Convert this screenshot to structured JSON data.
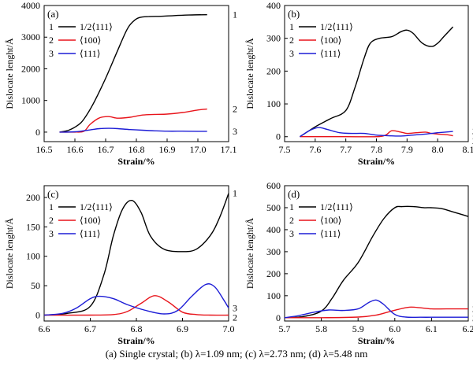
{
  "colors": {
    "1": "#000000",
    "2": "#e8141b",
    "3": "#1d1dd6"
  },
  "caption": "(a) Single crystal; (b) λ=1.09 nm; (c) λ=2.73 nm; (d) λ=5.48 nm",
  "chart_data": [
    {
      "type": "line",
      "panel_label": "(a)",
      "xlabel": "Strain/%",
      "ylabel": "Dislocate lenght/Å",
      "xlim": [
        16.5,
        17.1
      ],
      "ylim": [
        -300,
        4000
      ],
      "xticks": [
        "16.5",
        "16.6",
        "16.7",
        "16.8",
        "16.9",
        "17.0",
        "17.1"
      ],
      "yticks": [
        "0",
        "1000",
        "2000",
        "3000",
        "4000"
      ],
      "legend": [
        "1/2⟨111⟩",
        "⟨100⟩",
        "⟨111⟩"
      ],
      "legend_numbers": [
        "1",
        "2",
        "3"
      ],
      "series": [
        {
          "name": "1/2⟨111⟩",
          "end_label": "1",
          "x": [
            16.55,
            16.58,
            16.61,
            16.63,
            16.66,
            16.7,
            16.74,
            16.77,
            16.79,
            16.81,
            16.84,
            16.88,
            16.92,
            16.97,
            17.03
          ],
          "y": [
            0,
            60,
            220,
            420,
            900,
            1700,
            2600,
            3250,
            3500,
            3620,
            3650,
            3660,
            3680,
            3700,
            3710
          ]
        },
        {
          "name": "⟨100⟩",
          "end_label": "2",
          "x": [
            16.55,
            16.6,
            16.63,
            16.65,
            16.68,
            16.71,
            16.74,
            16.78,
            16.82,
            16.86,
            16.9,
            16.95,
            17.0,
            17.03
          ],
          "y": [
            0,
            0,
            30,
            250,
            450,
            490,
            440,
            470,
            540,
            560,
            570,
            620,
            700,
            730
          ]
        },
        {
          "name": "⟨111⟩",
          "end_label": "3",
          "x": [
            16.55,
            16.6,
            16.65,
            16.68,
            16.71,
            16.74,
            16.78,
            16.82,
            16.86,
            16.9,
            16.95,
            17.0,
            17.03
          ],
          "y": [
            0,
            10,
            70,
            110,
            120,
            110,
            80,
            60,
            40,
            30,
            30,
            25,
            25
          ]
        }
      ]
    },
    {
      "type": "line",
      "panel_label": "(b)",
      "xlabel": "Strain/%",
      "ylabel": "Dislocate lenght/Å",
      "xlim": [
        7.5,
        8.1
      ],
      "ylim": [
        -15,
        400
      ],
      "xticks": [
        "7.5",
        "7.6",
        "7.7",
        "7.8",
        "7.9",
        "8.0",
        "8.1"
      ],
      "yticks": [
        "0",
        "100",
        "200",
        "300",
        "400"
      ],
      "legend": [
        "1/2⟨111⟩",
        "⟨100⟩",
        "⟨111⟩"
      ],
      "legend_numbers": [
        "1",
        "2",
        "3"
      ],
      "series": [
        {
          "name": "1/2⟨111⟩",
          "end_label": "1",
          "x": [
            7.55,
            7.6,
            7.65,
            7.7,
            7.73,
            7.76,
            7.78,
            7.81,
            7.85,
            7.88,
            7.9,
            7.92,
            7.95,
            7.98,
            8.0,
            8.02,
            8.05
          ],
          "y": [
            0,
            30,
            55,
            80,
            150,
            240,
            285,
            300,
            305,
            320,
            325,
            315,
            285,
            275,
            285,
            305,
            335
          ]
        },
        {
          "name": "⟨100⟩",
          "end_label": "2",
          "x": [
            7.55,
            7.6,
            7.7,
            7.8,
            7.83,
            7.85,
            7.88,
            7.9,
            7.93,
            7.96,
            7.98,
            8.0,
            8.03,
            8.05
          ],
          "y": [
            0,
            0,
            0,
            0,
            5,
            18,
            14,
            10,
            12,
            14,
            10,
            8,
            6,
            3
          ]
        },
        {
          "name": "⟨111⟩",
          "end_label": "3",
          "x": [
            7.55,
            7.58,
            7.61,
            7.64,
            7.68,
            7.72,
            7.76,
            7.8,
            7.84,
            7.88,
            7.92,
            7.96,
            8.0,
            8.05
          ],
          "y": [
            0,
            18,
            28,
            22,
            12,
            10,
            10,
            5,
            3,
            2,
            5,
            8,
            12,
            16
          ]
        }
      ]
    },
    {
      "type": "line",
      "panel_label": "(c)",
      "xlabel": "Strain/%",
      "ylabel": "Dislocate lenght/Å",
      "xlim": [
        6.6,
        7.0
      ],
      "ylim": [
        -10,
        220
      ],
      "xticks": [
        "6.6",
        "6.7",
        "6.8",
        "6.9",
        "7.0"
      ],
      "yticks": [
        "0",
        "50",
        "100",
        "150",
        "200"
      ],
      "legend": [
        "1/2⟨111⟩",
        "⟨100⟩",
        "⟨111⟩"
      ],
      "legend_numbers": [
        "1",
        "2",
        "3"
      ],
      "series": [
        {
          "name": "1/2⟨111⟩",
          "end_label": "1",
          "x": [
            6.6,
            6.65,
            6.7,
            6.73,
            6.75,
            6.77,
            6.79,
            6.81,
            6.83,
            6.86,
            6.9,
            6.93,
            6.96,
            6.98,
            7.0
          ],
          "y": [
            0,
            3,
            15,
            70,
            135,
            180,
            195,
            175,
            135,
            112,
            108,
            112,
            135,
            165,
            207
          ]
        },
        {
          "name": "⟨100⟩",
          "end_label": "2",
          "x": [
            6.6,
            6.7,
            6.75,
            6.78,
            6.81,
            6.84,
            6.87,
            6.9,
            6.93,
            6.96,
            7.0
          ],
          "y": [
            0,
            0,
            1,
            6,
            20,
            33,
            22,
            5,
            1,
            0,
            0
          ]
        },
        {
          "name": "⟨111⟩",
          "end_label": "3",
          "x": [
            6.6,
            6.64,
            6.67,
            6.7,
            6.72,
            6.75,
            6.78,
            6.82,
            6.86,
            6.89,
            6.92,
            6.95,
            6.97,
            6.99,
            7.0
          ],
          "y": [
            0,
            3,
            12,
            28,
            32,
            28,
            18,
            8,
            2,
            8,
            32,
            52,
            48,
            25,
            12
          ]
        }
      ]
    },
    {
      "type": "line",
      "panel_label": "(d)",
      "xlabel": "Strain/%",
      "ylabel": "Dislocate lenght/Å",
      "xlim": [
        5.7,
        6.2
      ],
      "ylim": [
        -15,
        600
      ],
      "xticks": [
        "5.7",
        "5.8",
        "5.9",
        "6.0",
        "6.1",
        "6.2"
      ],
      "yticks": [
        "0",
        "100",
        "200",
        "300",
        "400",
        "500",
        "600"
      ],
      "legend": [
        "1/2⟨111⟩",
        "⟨100⟩",
        "⟨111⟩"
      ],
      "legend_numbers": [
        "1",
        "2",
        "3"
      ],
      "series": [
        {
          "name": "1/2⟨111⟩",
          "end_label": "1",
          "x": [
            5.7,
            5.75,
            5.8,
            5.83,
            5.86,
            5.9,
            5.94,
            5.97,
            6.0,
            6.02,
            6.05,
            6.08,
            6.1,
            6.13,
            6.16,
            6.2
          ],
          "y": [
            0,
            5,
            30,
            90,
            170,
            250,
            370,
            450,
            500,
            505,
            505,
            500,
            500,
            495,
            480,
            460
          ]
        },
        {
          "name": "⟨100⟩",
          "end_label": "2",
          "x": [
            5.7,
            5.8,
            5.9,
            5.95,
            5.98,
            6.01,
            6.04,
            6.07,
            6.1,
            6.14,
            6.2
          ],
          "y": [
            0,
            0,
            3,
            12,
            25,
            38,
            48,
            45,
            40,
            40,
            40
          ]
        },
        {
          "name": "⟨111⟩",
          "end_label": "3",
          "x": [
            5.7,
            5.74,
            5.78,
            5.82,
            5.86,
            5.9,
            5.93,
            5.95,
            5.97,
            6.0,
            6.03,
            6.07,
            6.12,
            6.2
          ],
          "y": [
            0,
            10,
            25,
            35,
            33,
            40,
            70,
            80,
            60,
            15,
            3,
            2,
            2,
            2
          ]
        }
      ]
    }
  ]
}
